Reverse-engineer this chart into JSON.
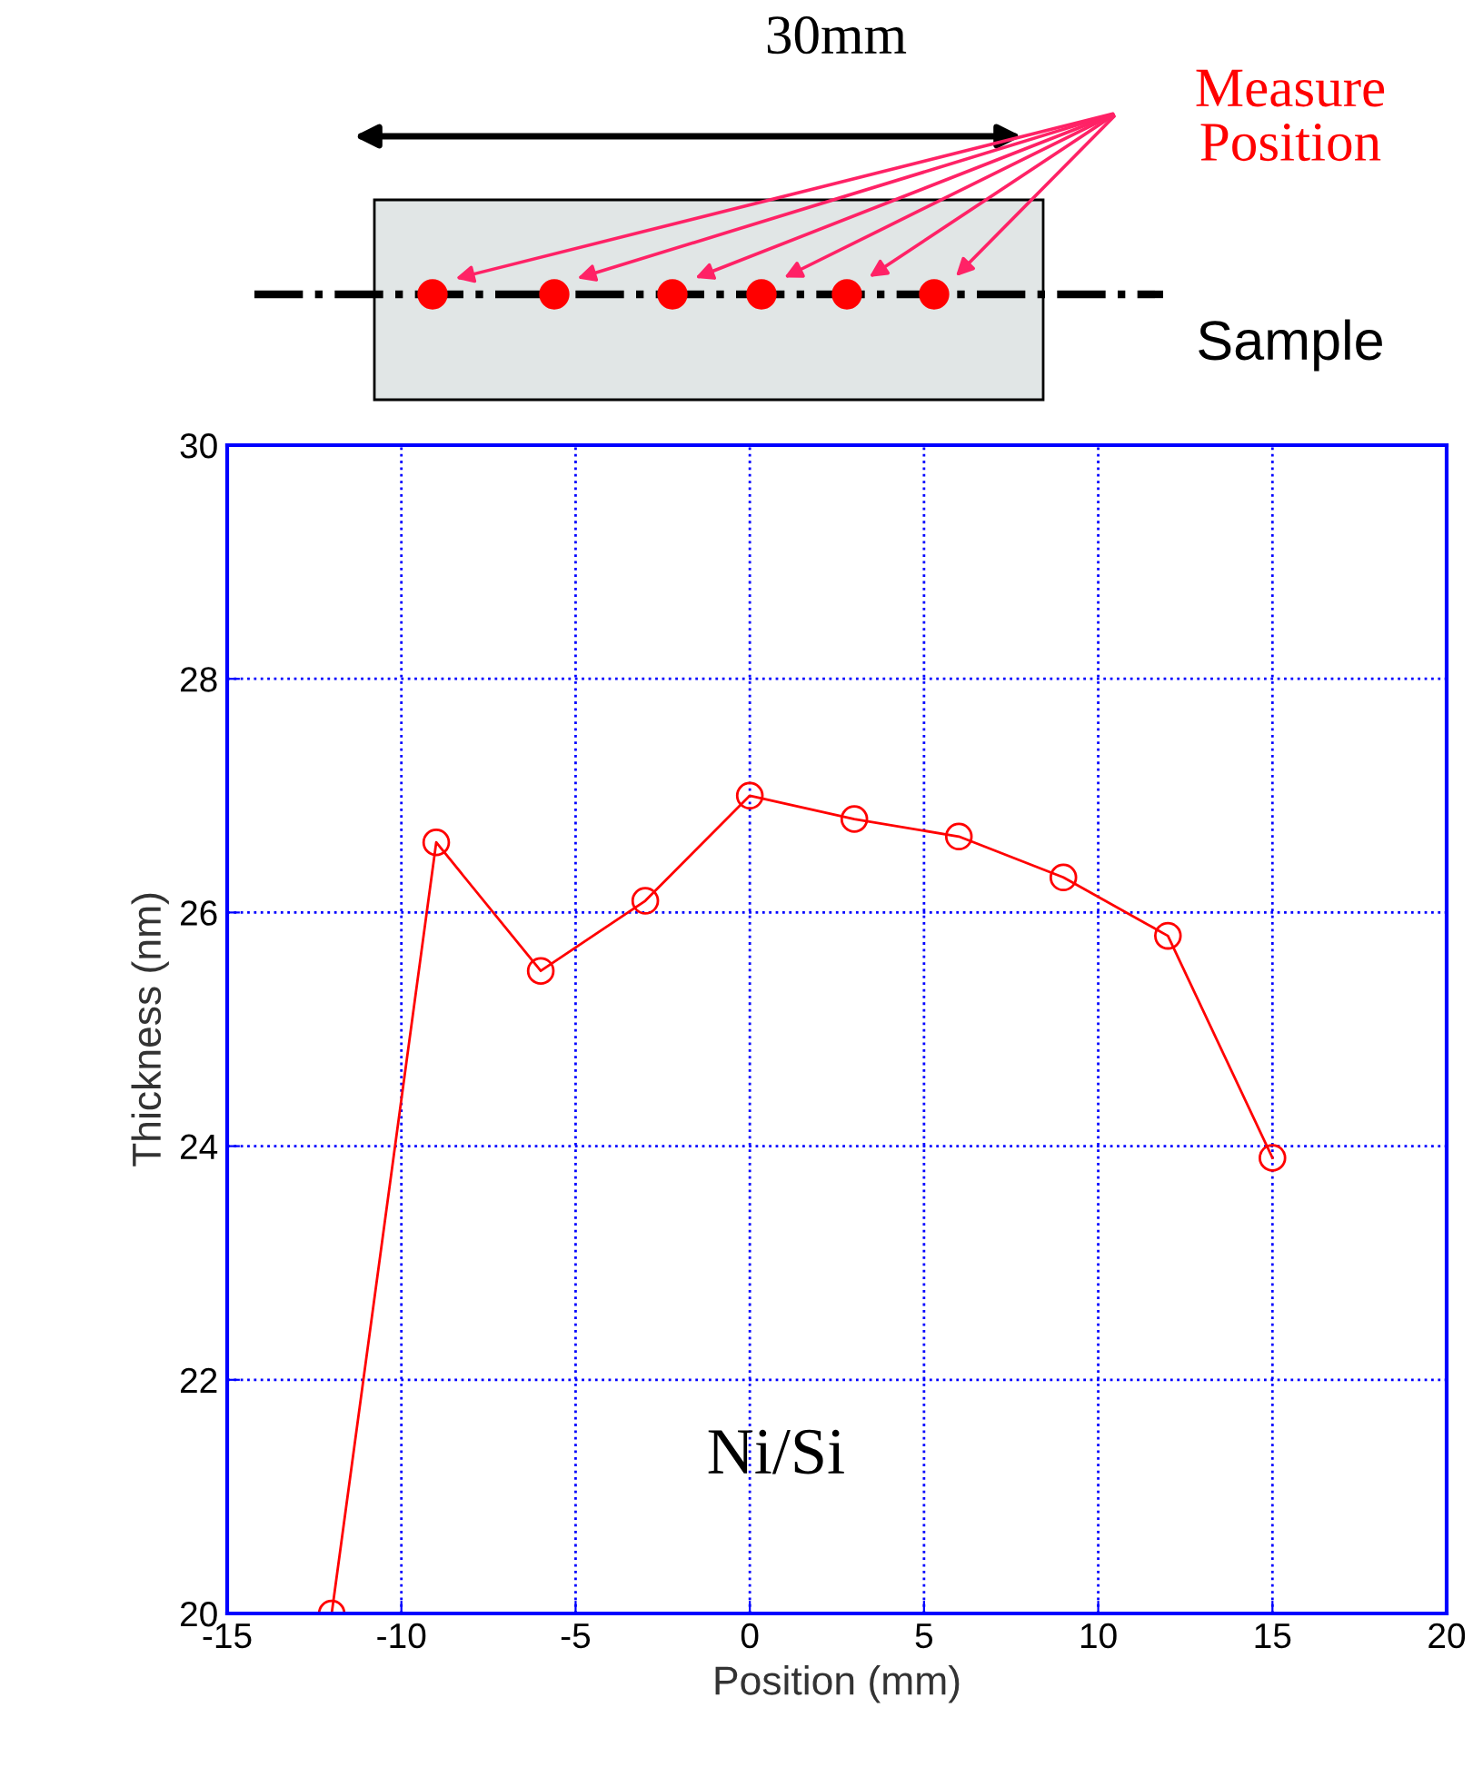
{
  "chart_data": {
    "type": "line",
    "xlabel": "Position (mm)",
    "ylabel": "Thickness (nm)",
    "x": [
      -12,
      -9,
      -6,
      -3,
      0,
      3,
      6,
      9,
      12,
      15
    ],
    "series": [
      {
        "color": "#ff0000",
        "values": [
          20.0,
          26.6,
          25.5,
          26.1,
          27.0,
          26.8,
          26.65,
          26.3,
          25.8,
          23.9
        ]
      }
    ],
    "xlim": [
      -15,
      20
    ],
    "xticks": [
      -15,
      -10,
      -5,
      0,
      5,
      10,
      15,
      20
    ],
    "ylim": [
      20,
      30
    ],
    "yticks": [
      20,
      22,
      24,
      26,
      28,
      30
    ],
    "grid": true,
    "marker": "circle",
    "line_style": "solid",
    "annotations": [
      "30mm",
      "Measure\nPosition",
      "Sample",
      "Ni/Si"
    ]
  }
}
